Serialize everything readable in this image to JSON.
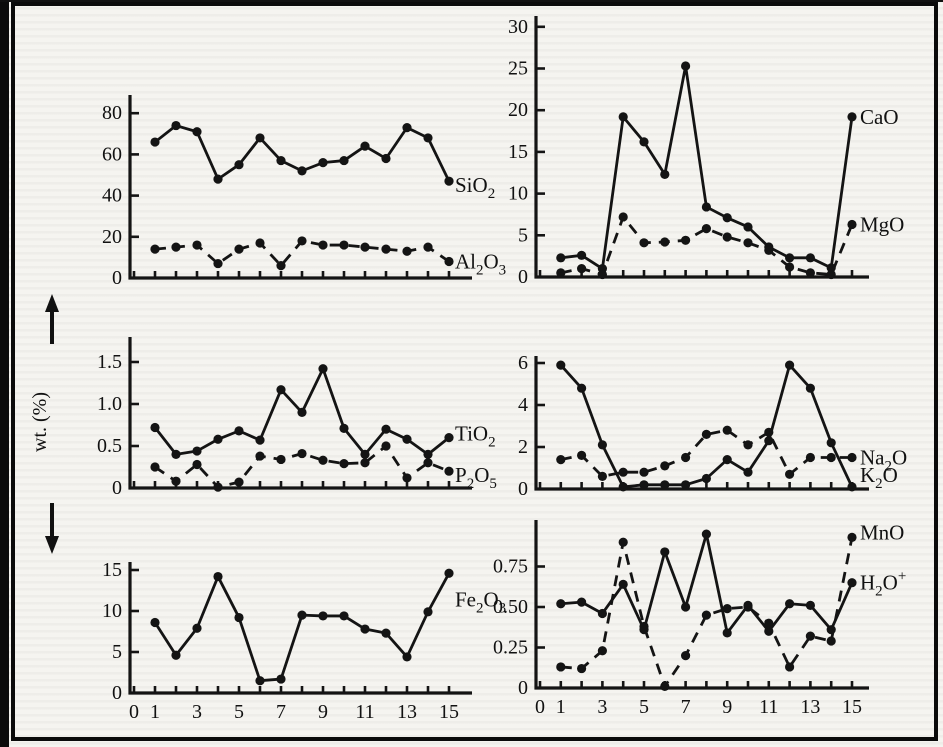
{
  "figure": {
    "y_axis_label": "wt. (%)",
    "line_color": "#141414",
    "background_color": "#f5f4f0"
  },
  "x_axis": {
    "ticks": [
      0,
      1,
      2,
      3,
      4,
      5,
      6,
      7,
      8,
      9,
      10,
      11,
      12,
      13,
      14,
      15
    ],
    "labeled_values": [
      0,
      1,
      3,
      5,
      7,
      9,
      11,
      13,
      15
    ],
    "labeled_ticks": [
      "0",
      "1",
      "3",
      "5",
      "7",
      "9",
      "11",
      "13",
      "15"
    ]
  },
  "chart_data": [
    {
      "id": "sio2-al2o3",
      "type": "line",
      "x": [
        1,
        2,
        3,
        4,
        5,
        6,
        7,
        8,
        9,
        10,
        11,
        12,
        13,
        14,
        15
      ],
      "ylim": [
        0,
        88
      ],
      "yticks": [
        0,
        20,
        40,
        60,
        80
      ],
      "ytick_labels": [
        "0",
        "20",
        "40",
        "60",
        "80"
      ],
      "show_x_labels": false,
      "series": [
        {
          "name": "SiO2",
          "formula": "SiO_2",
          "style": "solid",
          "values": [
            66,
            74,
            71,
            48,
            55,
            68,
            57,
            52,
            56,
            57,
            64,
            58,
            73,
            68,
            47
          ]
        },
        {
          "name": "Al2O3",
          "formula": "Al_2O_3",
          "style": "dashed",
          "values": [
            14,
            15,
            16,
            7,
            14,
            17,
            6,
            18,
            16,
            16,
            15,
            14,
            13,
            15,
            8
          ]
        }
      ]
    },
    {
      "id": "cao-mgo",
      "type": "line",
      "x": [
        1,
        2,
        3,
        4,
        5,
        6,
        7,
        8,
        9,
        10,
        11,
        12,
        13,
        14,
        15
      ],
      "ylim": [
        0,
        31
      ],
      "yticks": [
        0,
        5,
        10,
        15,
        20,
        25,
        30
      ],
      "ytick_labels": [
        "0",
        "5",
        "10",
        "15",
        "20",
        "25",
        "30"
      ],
      "show_x_labels": false,
      "series": [
        {
          "name": "CaO",
          "formula": "CaO",
          "style": "solid",
          "values": [
            2.3,
            2.6,
            1.0,
            19.2,
            16.2,
            12.3,
            25.3,
            8.4,
            7.1,
            6.0,
            3.6,
            2.3,
            2.3,
            1.1,
            19.2
          ]
        },
        {
          "name": "MgO",
          "formula": "MgO",
          "style": "dashed",
          "values": [
            0.5,
            1.0,
            0.3,
            7.2,
            4.1,
            4.2,
            4.4,
            5.8,
            4.8,
            4.1,
            3.2,
            1.2,
            0.5,
            0.3,
            6.3
          ]
        }
      ]
    },
    {
      "id": "tio2-p2o5",
      "type": "line",
      "x": [
        1,
        2,
        3,
        4,
        5,
        6,
        7,
        8,
        9,
        10,
        11,
        12,
        13,
        14,
        15
      ],
      "ylim": [
        0,
        1.8
      ],
      "yticks": [
        0,
        0.5,
        1.0,
        1.5
      ],
      "ytick_labels": [
        "0",
        "0.5",
        "1.0",
        "1.5"
      ],
      "show_x_labels": false,
      "series": [
        {
          "name": "TiO2",
          "formula": "TiO_2",
          "style": "solid",
          "values": [
            0.72,
            0.4,
            0.44,
            0.58,
            0.68,
            0.57,
            1.17,
            0.9,
            1.42,
            0.71,
            0.4,
            0.7,
            0.58,
            0.4,
            0.6
          ]
        },
        {
          "name": "P2O5",
          "formula": "P_2O_5",
          "style": "dashed",
          "values": [
            0.25,
            0.08,
            0.28,
            0.01,
            0.07,
            0.38,
            0.34,
            0.41,
            0.33,
            0.29,
            0.3,
            0.5,
            0.12,
            0.3,
            0.2
          ]
        }
      ]
    },
    {
      "id": "na2o-k2o",
      "type": "line",
      "x": [
        1,
        2,
        3,
        4,
        5,
        6,
        7,
        8,
        9,
        10,
        11,
        12,
        13,
        14,
        15
      ],
      "ylim": [
        0,
        6.4
      ],
      "yticks": [
        0,
        2,
        4,
        6
      ],
      "ytick_labels": [
        "0",
        "2",
        "4",
        "6"
      ],
      "show_x_labels": false,
      "series": [
        {
          "name": "K2O",
          "formula": "K_2O",
          "style": "solid",
          "values": [
            5.9,
            4.8,
            2.1,
            0.1,
            0.2,
            0.2,
            0.2,
            0.5,
            1.4,
            0.8,
            2.3,
            5.9,
            4.8,
            2.2,
            0.1
          ]
        },
        {
          "name": "Na2O",
          "formula": "Na_2O",
          "style": "dashed",
          "values": [
            1.4,
            1.6,
            0.6,
            0.8,
            0.8,
            1.1,
            1.5,
            2.6,
            2.8,
            2.1,
            2.7,
            0.7,
            1.5,
            1.5,
            1.5
          ]
        }
      ]
    },
    {
      "id": "fe2o3",
      "type": "line",
      "x": [
        1,
        2,
        3,
        4,
        5,
        6,
        7,
        8,
        9,
        10,
        11,
        12,
        13,
        14,
        15
      ],
      "ylim": [
        0,
        16
      ],
      "yticks": [
        0,
        5,
        10,
        15
      ],
      "ytick_labels": [
        "0",
        "5",
        "10",
        "15"
      ],
      "show_x_labels": true,
      "series": [
        {
          "name": "Fe2O3",
          "formula": "Fe_2O_3",
          "style": "solid",
          "values": [
            8.6,
            4.6,
            7.9,
            14.2,
            9.2,
            1.5,
            1.7,
            9.5,
            9.4,
            9.4,
            7.8,
            7.3,
            4.4,
            9.9,
            14.6
          ]
        }
      ]
    },
    {
      "id": "mno-h2o",
      "type": "line",
      "x": [
        1,
        2,
        3,
        4,
        5,
        6,
        7,
        8,
        9,
        10,
        11,
        12,
        13,
        14,
        15
      ],
      "ylim": [
        0,
        1.04
      ],
      "yticks": [
        0,
        0.25,
        0.5,
        0.75
      ],
      "ytick_labels": [
        "0",
        "0.25",
        "0.50",
        "0.75"
      ],
      "show_x_labels": true,
      "series": [
        {
          "name": "H2O+",
          "formula": "H_2O^+",
          "style": "solid",
          "values": [
            0.52,
            0.53,
            0.46,
            0.64,
            0.36,
            0.84,
            0.5,
            0.95,
            0.34,
            0.51,
            0.35,
            0.52,
            0.51,
            0.36,
            0.65
          ]
        },
        {
          "name": "MnO",
          "formula": "MnO",
          "style": "dashed",
          "values": [
            0.13,
            0.12,
            0.23,
            0.9,
            0.38,
            0.01,
            0.2,
            0.45,
            0.49,
            0.5,
            0.4,
            0.13,
            0.32,
            0.29,
            0.93
          ]
        }
      ]
    }
  ]
}
